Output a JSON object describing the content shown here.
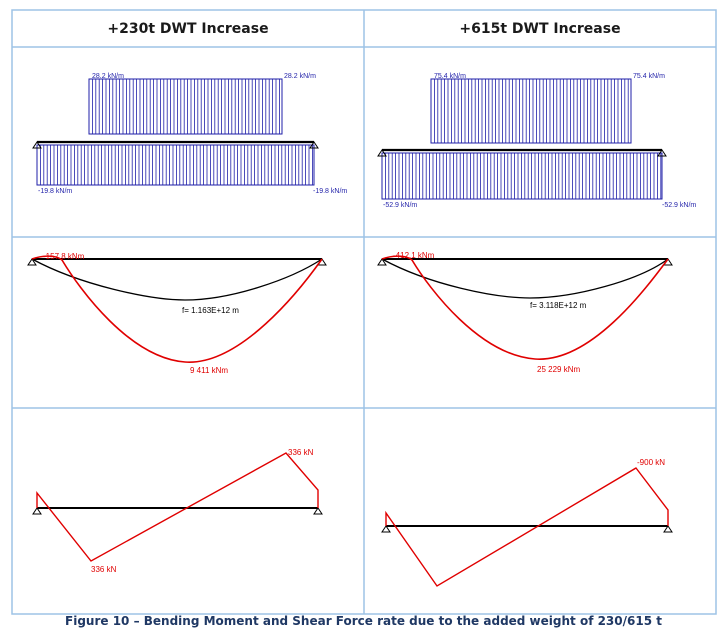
{
  "headers": [
    "+230t DWT Increase",
    "+615t DWT Increase"
  ],
  "panels": [
    {
      "load": {
        "top_left": "28.2 kN/m",
        "top_right": "28.2 kN/m",
        "bottom_left": "-19.8 kN/m",
        "bottom_right": "-19.8 kN/m"
      },
      "moment": {
        "left_label": "-157.8 kNm",
        "deflection_label": "f= 1.163E+12 m",
        "max_label": "9 411 kNm"
      },
      "shear": {
        "max_label": "336 kN",
        "min_label": "336 kN"
      }
    },
    {
      "load": {
        "top_left": "75.4 kN/m",
        "top_right": "75.4 kN/m",
        "bottom_left": "-52.9 kN/m",
        "bottom_right": "-52.9 kN/m"
      },
      "moment": {
        "left_label": "-412.1 kNm",
        "deflection_label": "f= 3.118E+12 m",
        "max_label": "25 229 kNm"
      },
      "shear": {
        "max_label": "-900 kN",
        "min_label": ""
      }
    }
  ],
  "caption": "Figure 10 – Bending Moment and Shear Force rate due to the added weight of 230/615 t",
  "colors": {
    "border": "#9dc3e6",
    "load": "#1f1fa8",
    "moment": "#e00000",
    "beam": "#000000",
    "caption": "#1f3864"
  }
}
